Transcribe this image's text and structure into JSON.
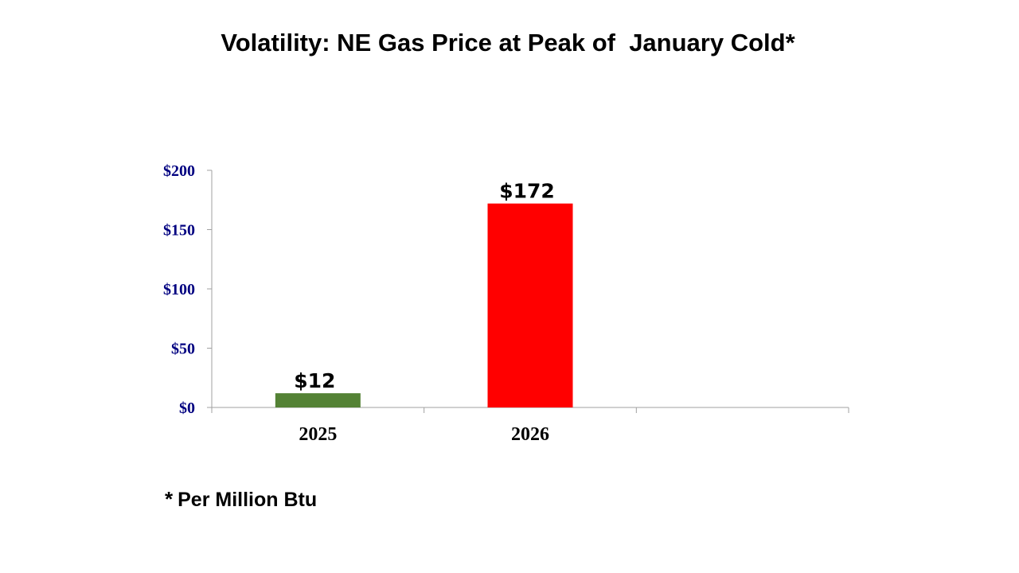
{
  "slide": {
    "title": "Volatility: NE Gas Price at Peak of  January Cold*",
    "footnote_marker": "*",
    "footnote_text": "Per Million Btu"
  },
  "chart_data": {
    "type": "bar",
    "categories": [
      "2025",
      "2026",
      ""
    ],
    "values": [
      12,
      172,
      null
    ],
    "data_labels": [
      "$12",
      "$172",
      ""
    ],
    "bar_colors": [
      "#548235",
      "#ff0000",
      null
    ],
    "y_ticks": [
      {
        "value": 0,
        "label": "$0"
      },
      {
        "value": 50,
        "label": "$50"
      },
      {
        "value": 100,
        "label": "$100"
      },
      {
        "value": 150,
        "label": "$150"
      },
      {
        "value": 200,
        "label": "$200"
      }
    ],
    "ylim": [
      0,
      200
    ],
    "axis_label_color": "#000080",
    "axis_line_color": "#a0a0a0",
    "grid": false,
    "legend": "none"
  }
}
